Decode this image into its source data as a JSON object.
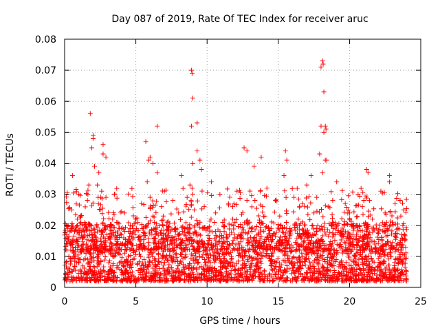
{
  "chart_data": {
    "type": "scatter",
    "title": "Day 087 of 2019, Rate Of TEC Index for receiver aruc",
    "xlabel": "GPS time / hours",
    "ylabel": "ROTI / TECUs",
    "xlim": [
      0,
      25
    ],
    "ylim": [
      0,
      0.08
    ],
    "xticks": [
      0,
      5,
      10,
      15,
      20,
      25
    ],
    "yticks": [
      0,
      0.01,
      0.02,
      0.03,
      0.04,
      0.05,
      0.06,
      0.07,
      0.08
    ],
    "xtick_labels": [
      "0",
      "5",
      "10",
      "15",
      "20",
      "25"
    ],
    "ytick_labels": [
      "0",
      "0.01",
      "0.02",
      "0.03",
      "0.04",
      "0.05",
      "0.06",
      "0.07",
      "0.08"
    ],
    "grid": true,
    "marker": "+",
    "color": "#ff0000",
    "series": [
      {
        "name": "ROTI",
        "x": [
          0.1,
          0.15,
          0.25,
          0.3,
          0.45,
          0.5,
          0.55,
          0.6,
          0.7,
          0.9,
          1.1,
          1.3,
          1.5,
          1.6,
          1.7,
          1.8,
          1.9,
          2.0,
          2.1,
          2.2,
          2.3,
          2.4,
          2.5,
          2.6,
          2.7,
          2.8,
          2.9,
          3.0,
          3.2,
          3.5,
          3.8,
          4.0,
          4.2,
          4.4,
          4.6,
          4.8,
          5.0,
          5.2,
          5.4,
          5.6,
          5.8,
          5.9,
          6.0,
          6.2,
          6.4,
          6.5,
          6.6,
          6.8,
          7.0,
          7.2,
          7.4,
          7.6,
          7.8,
          8.0,
          8.2,
          8.4,
          8.6,
          8.8,
          8.9,
          9.0,
          9.1,
          9.3,
          9.5,
          9.6,
          9.8,
          10.0,
          10.3,
          10.6,
          10.9,
          11.2,
          11.5,
          11.8,
          12.1,
          12.4,
          12.6,
          12.8,
          13.0,
          13.3,
          13.6,
          13.9,
          14.2,
          14.5,
          14.8,
          15.1,
          15.4,
          15.6,
          15.8,
          16.1,
          16.4,
          16.7,
          17.0,
          17.3,
          17.5,
          17.7,
          17.9,
          18.0,
          18.1,
          18.2,
          18.3,
          18.5,
          18.8,
          19.1,
          19.4,
          19.7,
          20.0,
          20.3,
          20.6,
          20.9,
          21.2,
          21.4,
          21.6,
          21.9,
          22.2,
          22.5,
          22.8,
          23.0,
          23.2,
          23.4,
          23.6,
          23.8,
          0.2,
          1.0,
          1.8,
          2.0,
          2.7,
          2.9,
          5.7,
          6.0,
          6.2,
          6.5,
          8.9,
          8.95,
          9.0,
          9.3,
          9.5,
          12.8,
          13.8,
          15.5,
          18.0,
          18.1,
          18.15,
          18.2,
          18.3,
          18.35,
          18.4,
          21.3,
          22.8
        ],
        "y": [
          0.008,
          0.012,
          0.02,
          0.006,
          0.015,
          0.025,
          0.036,
          0.01,
          0.018,
          0.022,
          0.009,
          0.014,
          0.011,
          0.028,
          0.033,
          0.02,
          0.045,
          0.049,
          0.039,
          0.015,
          0.033,
          0.037,
          0.025,
          0.031,
          0.043,
          0.02,
          0.029,
          0.012,
          0.016,
          0.03,
          0.011,
          0.019,
          0.024,
          0.014,
          0.018,
          0.009,
          0.022,
          0.016,
          0.027,
          0.013,
          0.034,
          0.041,
          0.029,
          0.023,
          0.018,
          0.037,
          0.014,
          0.026,
          0.031,
          0.021,
          0.015,
          0.028,
          0.019,
          0.024,
          0.036,
          0.017,
          0.029,
          0.033,
          0.052,
          0.04,
          0.025,
          0.044,
          0.021,
          0.038,
          0.026,
          0.019,
          0.034,
          0.024,
          0.03,
          0.018,
          0.027,
          0.022,
          0.031,
          0.016,
          0.045,
          0.028,
          0.021,
          0.039,
          0.017,
          0.026,
          0.032,
          0.019,
          0.028,
          0.023,
          0.036,
          0.041,
          0.018,
          0.029,
          0.022,
          0.027,
          0.033,
          0.036,
          0.024,
          0.029,
          0.043,
          0.052,
          0.037,
          0.05,
          0.041,
          0.026,
          0.021,
          0.034,
          0.018,
          0.027,
          0.024,
          0.02,
          0.03,
          0.026,
          0.038,
          0.028,
          0.022,
          0.019,
          0.031,
          0.024,
          0.034,
          0.021,
          0.027,
          0.019,
          0.023,
          0.025,
          0.019,
          0.03,
          0.056,
          0.048,
          0.046,
          0.042,
          0.047,
          0.042,
          0.04,
          0.052,
          0.07,
          0.069,
          0.061,
          0.053,
          0.041,
          0.044,
          0.042,
          0.044,
          0.071,
          0.073,
          0.072,
          0.063,
          0.052,
          0.051,
          0.041,
          0.037,
          0.036
        ]
      }
    ],
    "density_note": "Dense baseline cluster of points between roughly 0.002 and 0.02 TECUs spanning 0 to 24 hours"
  }
}
